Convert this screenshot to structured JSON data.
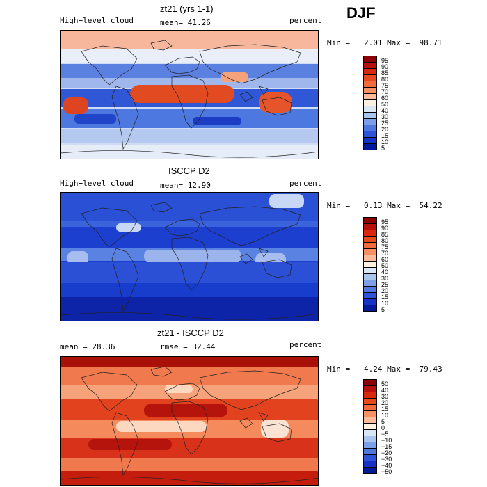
{
  "season": "DJF",
  "panels": [
    {
      "title": "zt21 (yrs 1-1)",
      "left_label": "High−level cloud",
      "mean_text": "mean=  41.26",
      "units": "percent",
      "minmax_text": "Min =   2.01 Max =  98.71",
      "field_style": "model",
      "colorbar_labels": [
        "95",
        "90",
        "85",
        "80",
        "75",
        "70",
        "60",
        "50",
        "40",
        "30",
        "25",
        "20",
        "15",
        "10",
        "5"
      ]
    },
    {
      "title": "ISCCP D2",
      "left_label": "High−level cloud",
      "mean_text": "mean=  12.90",
      "units": "percent",
      "minmax_text": "Min =   0.13 Max =  54.22",
      "field_style": "obs",
      "colorbar_labels": [
        "95",
        "90",
        "85",
        "80",
        "75",
        "70",
        "60",
        "50",
        "40",
        "30",
        "25",
        "20",
        "15",
        "10",
        "5"
      ]
    },
    {
      "title": "zt21 - ISCCP D2",
      "left_label": "mean =   28.36",
      "mean_text": "rmse =   32.44",
      "units": "percent",
      "minmax_text": "Min =  −4.24 Max =  79.43",
      "field_style": "diff",
      "colorbar_labels": [
        "50",
        "40",
        "30",
        "20",
        "15",
        "10",
        "5",
        "0",
        "−5",
        "−10",
        "−15",
        "−20",
        "−30",
        "−40",
        "−50"
      ]
    }
  ],
  "colorbar_colors": [
    "#8b0000",
    "#b5100c",
    "#d8260f",
    "#e84a1f",
    "#f26b3c",
    "#f79063",
    "#fbbb98",
    "#fdf0de",
    "#d8e6f6",
    "#a9c5ee",
    "#7ba0e8",
    "#4f77de",
    "#2e52d8",
    "#1631c6",
    "#001a99"
  ]
}
